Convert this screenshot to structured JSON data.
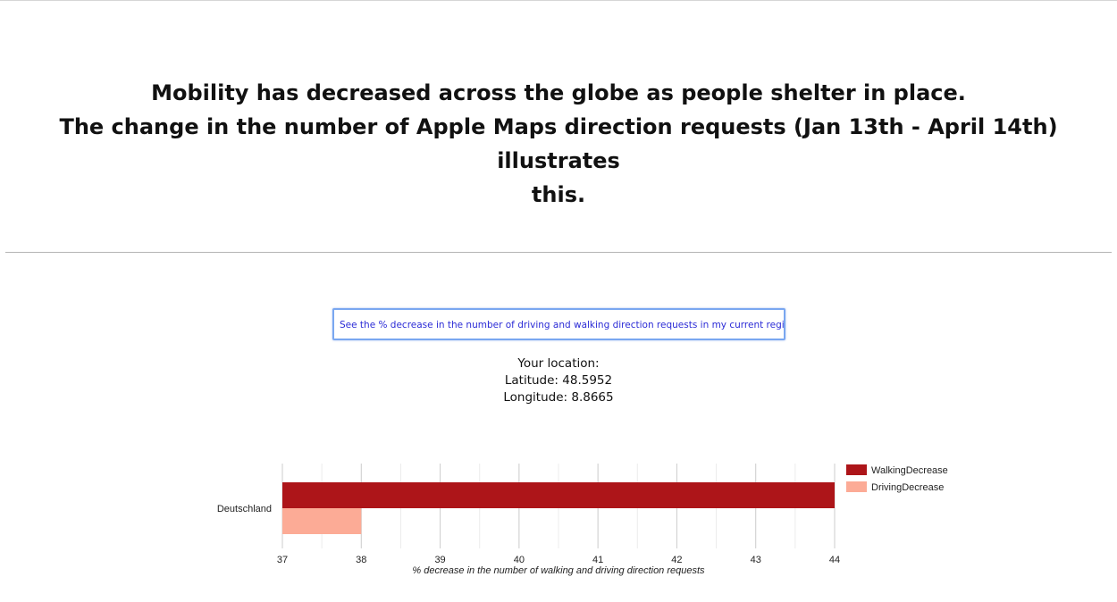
{
  "header": {
    "title_line1": "Mobility has decreased across the globe as people shelter in place.",
    "title_line2": "The change in the number of Apple Maps direction requests (Jan 13th - April 14th) illustrates",
    "title_line3": "this."
  },
  "region_button": {
    "label": "See the % decrease in the number of driving and walking direction requests in my current region"
  },
  "location": {
    "heading": "Your location:",
    "latitude_text": "Latitude: 48.5952",
    "longitude_text": "Longitude: 8.8665"
  },
  "chart_data": {
    "type": "bar",
    "orientation": "horizontal",
    "categories": [
      "Deutschland"
    ],
    "series": [
      {
        "name": "WalkingDecrease",
        "values": [
          44
        ],
        "color": "#ad1519"
      },
      {
        "name": "DrivingDecrease",
        "values": [
          38
        ],
        "color": "#fcab96"
      }
    ],
    "xlabel": "% decrease in the number of walking and driving direction requests",
    "ylabel": "",
    "xlim": [
      37,
      44
    ],
    "xticks": [
      37,
      38,
      39,
      40,
      41,
      42,
      43,
      44
    ],
    "grid": true,
    "minor_grid": true,
    "legend_position": "right"
  }
}
